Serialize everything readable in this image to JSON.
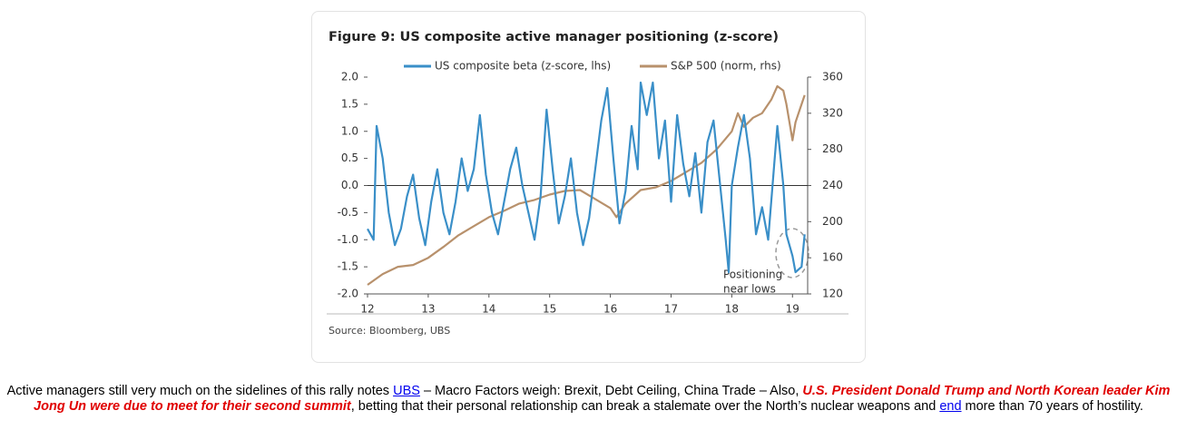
{
  "chart_data": {
    "type": "line",
    "title": "Figure 9: US composite active manager positioning (z-score)",
    "source": "Source: Bloomberg, UBS",
    "annotation": [
      "Positioning",
      "near lows"
    ],
    "xlim": [
      12,
      19.25
    ],
    "xticks": [
      12,
      13,
      14,
      15,
      16,
      17,
      18,
      19
    ],
    "ylim": [
      -2,
      2
    ],
    "yticks": [
      {
        "value": -2,
        "label": "-2.0"
      },
      {
        "value": -1.5,
        "label": "-1.5"
      },
      {
        "value": -1,
        "label": "-1.0"
      },
      -0.5,
      {
        "value": 0,
        "label": "0.0"
      },
      0.5,
      {
        "value": 1,
        "label": "1.0"
      },
      1.5,
      {
        "value": 2,
        "label": "2.0"
      }
    ],
    "y2lim": [
      120,
      360
    ],
    "y2ticks": [
      120,
      160,
      200,
      240,
      280,
      320,
      360
    ],
    "series": [
      {
        "name": "US composite beta (z-score, lhs)",
        "color": "#3a8fc8",
        "axis": "y",
        "x": [
          12.0,
          12.1,
          12.15,
          12.25,
          12.35,
          12.45,
          12.55,
          12.65,
          12.75,
          12.85,
          12.95,
          13.05,
          13.15,
          13.25,
          13.35,
          13.45,
          13.55,
          13.65,
          13.75,
          13.85,
          13.95,
          14.05,
          14.15,
          14.25,
          14.35,
          14.45,
          14.55,
          14.65,
          14.75,
          14.85,
          14.95,
          15.05,
          15.15,
          15.25,
          15.35,
          15.45,
          15.55,
          15.65,
          15.75,
          15.85,
          15.95,
          16.05,
          16.15,
          16.25,
          16.35,
          16.45,
          16.5,
          16.6,
          16.7,
          16.8,
          16.9,
          17.0,
          17.1,
          17.2,
          17.3,
          17.4,
          17.5,
          17.6,
          17.7,
          17.8,
          17.9,
          17.95,
          18.0,
          18.1,
          18.2,
          18.3,
          18.4,
          18.5,
          18.6,
          18.7,
          18.75,
          18.85,
          18.9,
          19.0,
          19.05,
          19.15,
          19.2
        ],
        "values": [
          -0.8,
          -1.0,
          1.1,
          0.5,
          -0.5,
          -1.1,
          -0.8,
          -0.2,
          0.2,
          -0.6,
          -1.1,
          -0.3,
          0.3,
          -0.5,
          -0.9,
          -0.3,
          0.5,
          -0.1,
          0.3,
          1.3,
          0.2,
          -0.5,
          -0.9,
          -0.3,
          0.3,
          0.7,
          0.0,
          -0.5,
          -1.0,
          -0.2,
          1.4,
          0.3,
          -0.7,
          -0.2,
          0.5,
          -0.5,
          -1.1,
          -0.6,
          0.3,
          1.2,
          1.8,
          0.5,
          -0.7,
          -0.1,
          1.1,
          0.3,
          1.9,
          1.3,
          1.9,
          0.5,
          1.2,
          -0.3,
          1.3,
          0.4,
          -0.2,
          0.6,
          -0.5,
          0.8,
          1.2,
          0.1,
          -1.0,
          -1.6,
          0.0,
          0.7,
          1.3,
          0.5,
          -0.9,
          -0.4,
          -1.0,
          0.4,
          1.1,
          0.0,
          -0.9,
          -1.3,
          -1.6,
          -1.5,
          -0.9
        ]
      },
      {
        "name": "S&P 500 (norm, rhs)",
        "color": "#b8916c",
        "axis": "y2",
        "x": [
          12.0,
          12.25,
          12.5,
          12.75,
          13.0,
          13.25,
          13.5,
          13.75,
          14.0,
          14.25,
          14.5,
          14.75,
          15.0,
          15.25,
          15.5,
          15.75,
          16.0,
          16.1,
          16.25,
          16.5,
          16.75,
          17.0,
          17.25,
          17.5,
          17.75,
          18.0,
          18.1,
          18.2,
          18.35,
          18.5,
          18.65,
          18.75,
          18.85,
          18.9,
          19.0,
          19.05,
          19.15,
          19.2
        ],
        "values": [
          130,
          142,
          150,
          152,
          160,
          172,
          185,
          195,
          205,
          212,
          220,
          224,
          230,
          234,
          235,
          225,
          215,
          205,
          220,
          235,
          238,
          245,
          255,
          265,
          280,
          300,
          320,
          305,
          315,
          320,
          335,
          350,
          345,
          330,
          290,
          310,
          330,
          340
        ]
      }
    ],
    "legend": "top"
  },
  "caption": {
    "part_1": "Active managers still very much on the sidelines of this rally notes ",
    "link_1": "UBS",
    "part_2": " – Macro Factors weigh:  Brexit, Debt Ceiling, China Trade – Also, ",
    "highlight": "U.S. President Donald Trump and North Korean leader Kim Jong Un were due to meet for their second summit",
    "part_3": ", betting that their personal relationship can break a stalemate over the North’s nuclear weapons and ",
    "link_2": "end",
    "part_4": " more than 70 years of hostility."
  }
}
